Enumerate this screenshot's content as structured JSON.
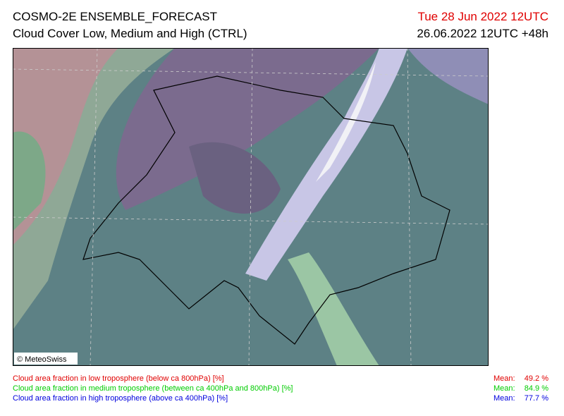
{
  "header": {
    "title": "COSMO-2E ENSEMBLE_FORECAST",
    "subtitle": "Cloud Cover Low, Medium and High (CTRL)",
    "valid_time": "Tue 28 Jun 2022 12UTC",
    "run_time": "26.06.2022 12UTC +48h"
  },
  "map": {
    "copyright": "© MeteoSwiss"
  },
  "legend": {
    "items": [
      {
        "label": "Cloud area fraction in low troposphere (below ca 800hPa) [%]",
        "mean_label": "Mean:",
        "mean_value": "49.2 %"
      },
      {
        "label": "Cloud area fraction in medium troposphere (between ca 400hPa and 800hPa) [%]",
        "mean_label": "Mean:",
        "mean_value": "84.9 %"
      },
      {
        "label": "Cloud area fraction in high troposphere (above ca 400hPa) [%]",
        "mean_label": "Mean:",
        "mean_value": "77.7 %"
      }
    ]
  }
}
